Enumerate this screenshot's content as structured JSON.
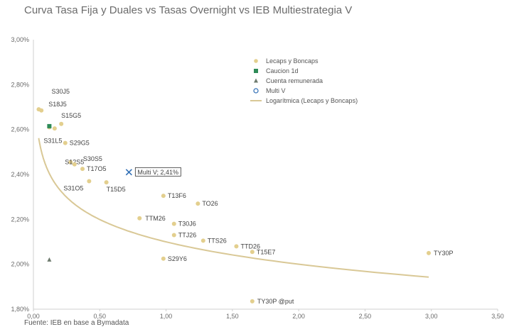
{
  "title": "Curva Tasa Fija y Duales vs Tasas Overnight  vs IEB Multiestrategia V",
  "source": "Fuente: IEB en base a Bymadata",
  "colors": {
    "lecaps": "#e3cf8e",
    "caucion": "#2e8b57",
    "cuenta": "#6e7b6e",
    "multi": "#2e6db4",
    "curve": "#d9c896",
    "axis": "#cfcfcf"
  },
  "chart_data": {
    "type": "scatter",
    "title": "Curva Tasa Fija y Duales vs Tasas Overnight  vs IEB Multiestrategia V",
    "xlim": [
      0,
      3.5
    ],
    "ylim": [
      0.018,
      0.03
    ],
    "x_ticks": [
      "0,00",
      "0,50",
      "1,00",
      "1,50",
      "2,00",
      "2,50",
      "3,00",
      "3,50"
    ],
    "x_tick_values": [
      0,
      0.5,
      1.0,
      1.5,
      2.0,
      2.5,
      3.0,
      3.5
    ],
    "y_ticks": [
      "1,80%",
      "2,00%",
      "2,20%",
      "2,40%",
      "2,60%",
      "2,80%",
      "3,00%"
    ],
    "y_tick_values": [
      0.018,
      0.02,
      0.022,
      0.024,
      0.026,
      0.028,
      0.03
    ],
    "grid": false,
    "legend_position": "top-right",
    "legend": [
      {
        "name": "Lecaps y Boncaps",
        "marker": "circle"
      },
      {
        "name": "Caucion 1d",
        "marker": "square"
      },
      {
        "name": "Cuenta remunerada",
        "marker": "triangle"
      },
      {
        "name": "Multi V",
        "marker": "open-circle"
      },
      {
        "name": "Logarítmica (Lecaps y Boncaps)",
        "marker": "line"
      }
    ],
    "series": [
      {
        "name": "Lecaps y Boncaps",
        "points": [
          {
            "label": "S30J5",
            "x": 0.04,
            "y": 0.0269
          },
          {
            "label": "S18J5",
            "x": 0.06,
            "y": 0.02685
          },
          {
            "label": "S15G5",
            "x": 0.21,
            "y": 0.02625
          },
          {
            "label": "",
            "x": 0.16,
            "y": 0.02605
          },
          {
            "label": "S31L5",
            "x": 0.12,
            "y": 0.0261
          },
          {
            "label": "S29G5",
            "x": 0.24,
            "y": 0.0254
          },
          {
            "label": "S12S5",
            "x": 0.28,
            "y": 0.02455
          },
          {
            "label": "S30S5",
            "x": 0.31,
            "y": 0.02445
          },
          {
            "label": "T17O5",
            "x": 0.37,
            "y": 0.02425
          },
          {
            "label": "S31O5",
            "x": 0.42,
            "y": 0.0237
          },
          {
            "label": "T15D5",
            "x": 0.55,
            "y": 0.02365
          },
          {
            "label": "T13F6",
            "x": 0.98,
            "y": 0.02305
          },
          {
            "label": "TO26",
            "x": 1.24,
            "y": 0.0227
          },
          {
            "label": "TTM26",
            "x": 0.8,
            "y": 0.02205
          },
          {
            "label": "T30J6",
            "x": 1.06,
            "y": 0.0218
          },
          {
            "label": "TTJ26",
            "x": 1.06,
            "y": 0.0213
          },
          {
            "label": "TTS26",
            "x": 1.28,
            "y": 0.02105
          },
          {
            "label": "TTD26",
            "x": 1.53,
            "y": 0.0208
          },
          {
            "label": "T15E7",
            "x": 1.65,
            "y": 0.02055
          },
          {
            "label": "S29Y6",
            "x": 0.98,
            "y": 0.02025
          },
          {
            "label": "TY30P",
            "x": 2.98,
            "y": 0.0205
          },
          {
            "label": "TY30P @put",
            "x": 1.65,
            "y": 0.01835
          }
        ]
      },
      {
        "name": "Caucion 1d",
        "points": [
          {
            "label": "",
            "x": 0.12,
            "y": 0.02615
          }
        ]
      },
      {
        "name": "Cuenta remunerada",
        "points": [
          {
            "label": "",
            "x": 0.12,
            "y": 0.0202
          }
        ]
      },
      {
        "name": "Multi V",
        "points": [
          {
            "label": "Multi V; 2,41%",
            "x": 0.72,
            "y": 0.0241
          }
        ]
      }
    ],
    "trendline": {
      "name": "Logarítmica (Lecaps y Boncaps)",
      "type": "logarithmic",
      "x_range": [
        0.04,
        2.98
      ],
      "a": 0.020998,
      "b": -0.0014355
    }
  }
}
